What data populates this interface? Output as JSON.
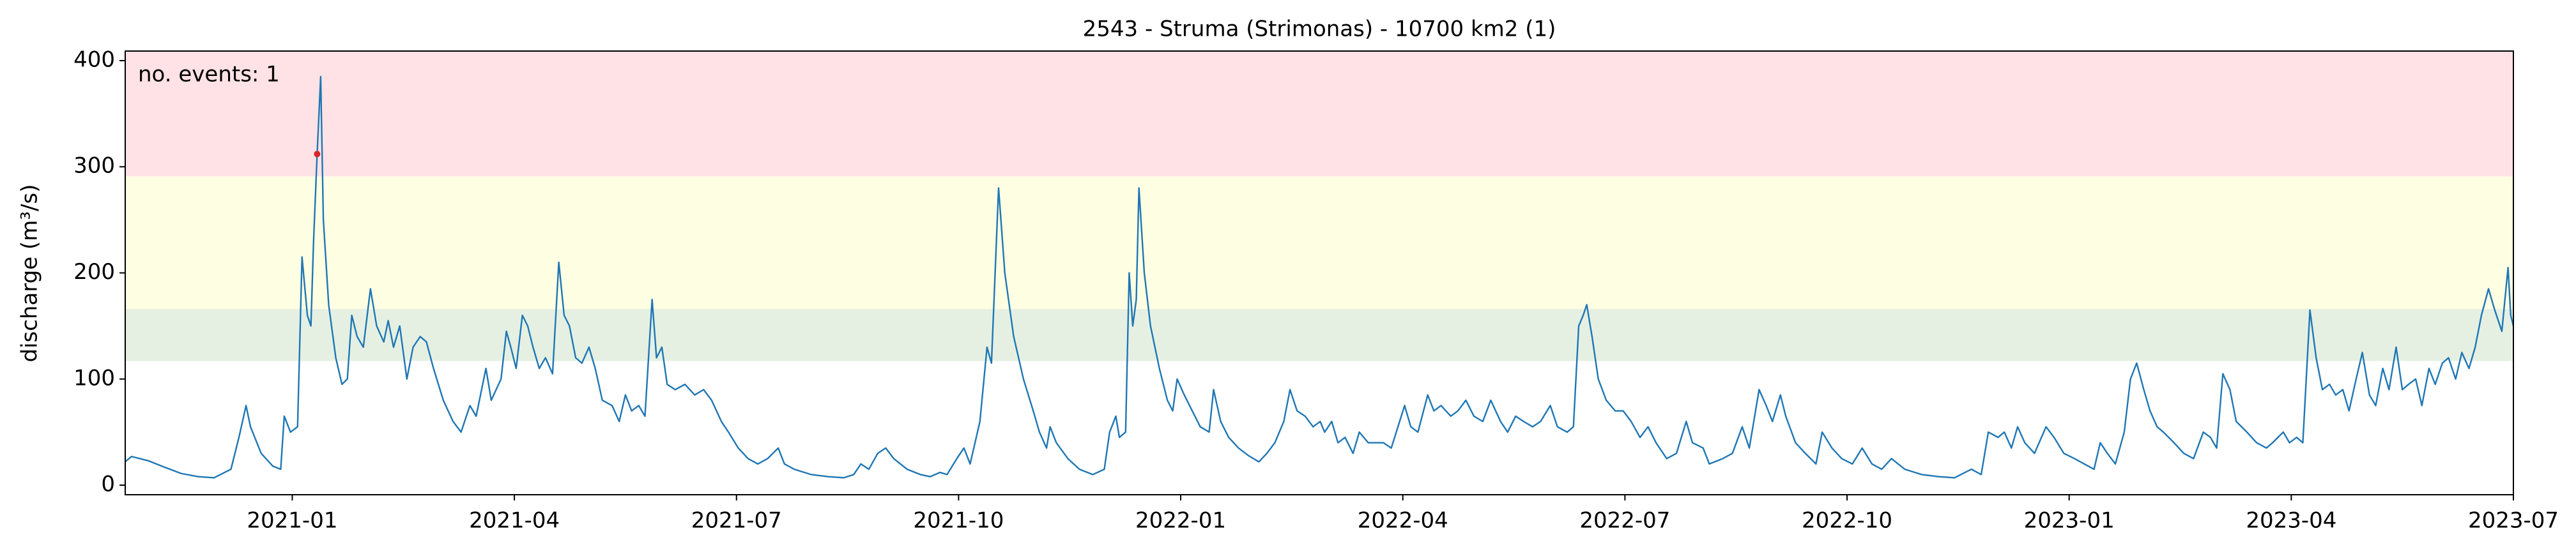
{
  "chart_data": {
    "type": "line",
    "title": "2543 - Struma (Strimonas) - 10700 km2 (1)",
    "y_label": "discharge (m³/s)",
    "annotation": "no. events: 1",
    "color": "#1f77b4",
    "x": [
      2020.812,
      2020.819,
      2020.838,
      2020.856,
      2020.875,
      2020.894,
      2020.912,
      2020.931,
      2020.94,
      2020.948,
      2020.953,
      2020.965,
      2020.978,
      2020.987,
      2020.991,
      2020.998,
      2021.006,
      2021.011,
      2021.017,
      2021.021,
      2021.024,
      2021.028,
      2021.032,
      2021.035,
      2021.041,
      2021.049,
      2021.056,
      2021.062,
      2021.067,
      2021.073,
      2021.08,
      2021.088,
      2021.095,
      2021.103,
      2021.108,
      2021.114,
      2021.121,
      2021.129,
      2021.136,
      2021.144,
      2021.151,
      2021.159,
      2021.17,
      2021.181,
      2021.19,
      2021.2,
      2021.207,
      2021.218,
      2021.224,
      2021.235,
      2021.241,
      2021.246,
      2021.252,
      2021.259,
      2021.265,
      2021.271,
      2021.278,
      2021.285,
      2021.293,
      2021.3,
      2021.306,
      2021.312,
      2021.319,
      2021.326,
      2021.334,
      2021.341,
      2021.349,
      2021.36,
      2021.368,
      2021.375,
      2021.382,
      2021.39,
      2021.397,
      2021.405,
      2021.41,
      2021.416,
      2021.422,
      2021.431,
      2021.442,
      2021.453,
      2021.463,
      2021.472,
      2021.483,
      2021.491,
      2021.502,
      2021.513,
      2021.524,
      2021.535,
      2021.547,
      2021.554,
      2021.565,
      2021.584,
      2021.603,
      2021.621,
      2021.632,
      2021.64,
      2021.649,
      2021.659,
      2021.668,
      2021.677,
      2021.692,
      2021.707,
      2021.718,
      2021.729,
      2021.737,
      2021.748,
      2021.756,
      2021.763,
      2021.774,
      2021.782,
      2021.787,
      2021.795,
      2021.802,
      2021.812,
      2021.823,
      2021.834,
      2021.841,
      2021.849,
      2021.853,
      2021.86,
      2021.873,
      2021.886,
      2021.901,
      2021.914,
      2021.92,
      2021.927,
      2021.931,
      2021.938,
      2021.942,
      2021.946,
      2021.95,
      2021.953,
      2021.959,
      2021.966,
      2021.976,
      2021.985,
      2021.991,
      2021.996,
      2022.004,
      2022.013,
      2022.022,
      2022.032,
      2022.037,
      2022.045,
      2022.054,
      2022.065,
      2022.076,
      2022.088,
      2022.097,
      2022.106,
      2022.116,
      2022.123,
      2022.131,
      2022.14,
      2022.149,
      2022.157,
      2022.162,
      2022.17,
      2022.177,
      2022.185,
      2022.194,
      2022.201,
      2022.211,
      2022.228,
      2022.237,
      2022.252,
      2022.259,
      2022.267,
      2022.278,
      2022.285,
      2022.293,
      2022.304,
      2022.312,
      2022.321,
      2022.33,
      2022.34,
      2022.349,
      2022.36,
      2022.368,
      2022.377,
      2022.386,
      2022.396,
      2022.405,
      2022.416,
      2022.424,
      2022.435,
      2022.442,
      2022.448,
      2022.453,
      2022.457,
      2022.463,
      2022.47,
      2022.479,
      2022.489,
      2022.498,
      2022.507,
      2022.517,
      2022.526,
      2022.535,
      2022.547,
      2022.558,
      2022.569,
      2022.576,
      2022.588,
      2022.595,
      2022.61,
      2022.621,
      2022.632,
      2022.64,
      2022.651,
      2022.659,
      2022.666,
      2022.675,
      2022.681,
      2022.692,
      2022.703,
      2022.715,
      2022.722,
      2022.733,
      2022.744,
      2022.756,
      2022.767,
      2022.778,
      2022.789,
      2022.8,
      2022.815,
      2022.834,
      2022.853,
      2022.871,
      2022.89,
      2022.901,
      2022.909,
      2022.92,
      2022.927,
      2022.935,
      2022.942,
      2022.95,
      2022.961,
      2022.974,
      2022.983,
      2022.994,
      2023.006,
      2023.017,
      2023.028,
      2023.035,
      2023.043,
      2023.052,
      2023.062,
      2023.069,
      2023.076,
      2023.084,
      2023.091,
      2023.099,
      2023.106,
      2023.118,
      2023.129,
      2023.14,
      2023.151,
      2023.159,
      2023.166,
      2023.173,
      2023.181,
      2023.188,
      2023.2,
      2023.211,
      2023.222,
      2023.229,
      2023.241,
      2023.248,
      2023.256,
      2023.263,
      2023.271,
      2023.278,
      2023.285,
      2023.293,
      2023.3,
      2023.308,
      2023.315,
      2023.323,
      2023.33,
      2023.338,
      2023.345,
      2023.353,
      2023.36,
      2023.368,
      2023.375,
      2023.382,
      2023.39,
      2023.397,
      2023.405,
      2023.412,
      2023.42,
      2023.427,
      2023.435,
      2023.442,
      2023.45,
      2023.457,
      2023.464,
      2023.472,
      2023.479,
      2023.487,
      2023.494,
      2023.497,
      2023.5
    ],
    "values": [
      22,
      27,
      23,
      17,
      11,
      8,
      7,
      15,
      45,
      75,
      55,
      30,
      18,
      15,
      65,
      50,
      55,
      215,
      160,
      150,
      230,
      312,
      385,
      250,
      170,
      120,
      95,
      100,
      160,
      140,
      130,
      185,
      150,
      135,
      155,
      130,
      150,
      100,
      130,
      140,
      135,
      110,
      80,
      60,
      50,
      75,
      65,
      110,
      80,
      100,
      145,
      130,
      110,
      160,
      150,
      130,
      110,
      120,
      105,
      210,
      160,
      150,
      120,
      115,
      130,
      110,
      80,
      75,
      60,
      85,
      70,
      75,
      65,
      175,
      120,
      130,
      95,
      90,
      95,
      85,
      90,
      80,
      60,
      50,
      35,
      25,
      20,
      25,
      35,
      20,
      15,
      10,
      8,
      7,
      10,
      20,
      15,
      30,
      35,
      25,
      15,
      10,
      8,
      12,
      10,
      25,
      35,
      20,
      60,
      130,
      115,
      280,
      200,
      140,
      100,
      70,
      50,
      35,
      55,
      40,
      25,
      15,
      10,
      15,
      50,
      65,
      45,
      50,
      200,
      150,
      175,
      280,
      200,
      150,
      110,
      80,
      70,
      100,
      85,
      70,
      55,
      50,
      90,
      60,
      45,
      35,
      28,
      22,
      30,
      40,
      60,
      90,
      70,
      65,
      55,
      60,
      50,
      60,
      40,
      45,
      30,
      50,
      40,
      40,
      35,
      75,
      55,
      50,
      85,
      70,
      75,
      65,
      70,
      80,
      65,
      60,
      80,
      60,
      50,
      65,
      60,
      55,
      60,
      75,
      55,
      50,
      55,
      150,
      160,
      170,
      140,
      100,
      80,
      70,
      70,
      60,
      45,
      55,
      40,
      25,
      30,
      60,
      40,
      35,
      20,
      25,
      30,
      55,
      35,
      90,
      75,
      60,
      85,
      65,
      40,
      30,
      20,
      50,
      35,
      25,
      20,
      35,
      20,
      15,
      25,
      15,
      10,
      8,
      7,
      15,
      10,
      50,
      45,
      50,
      35,
      55,
      40,
      30,
      55,
      45,
      30,
      25,
      20,
      15,
      40,
      30,
      20,
      50,
      100,
      115,
      90,
      70,
      55,
      50,
      40,
      30,
      25,
      50,
      45,
      35,
      105,
      90,
      60,
      50,
      40,
      35,
      40,
      50,
      40,
      45,
      40,
      165,
      120,
      90,
      95,
      85,
      90,
      70,
      100,
      125,
      85,
      75,
      110,
      90,
      130,
      90,
      95,
      100,
      75,
      110,
      95,
      115,
      120,
      100,
      125,
      110,
      130,
      160,
      185,
      165,
      145,
      205,
      160,
      150
    ],
    "events": {
      "x": [
        2021.028
      ],
      "values": [
        312
      ],
      "color": "#d62728"
    },
    "bands": [
      {
        "range": [
          117,
          166
        ],
        "color": "#e5f0e3"
      },
      {
        "range": [
          166,
          291
        ],
        "color": "#fefee3"
      },
      {
        "range": [
          291,
          409
        ],
        "color": "#fee2e5"
      }
    ],
    "xlim": [
      2020.812,
      2023.5
    ],
    "xticks": [
      {
        "value": 2021.0,
        "label": "2021-01"
      },
      {
        "value": 2021.25,
        "label": "2021-04"
      },
      {
        "value": 2021.5,
        "label": "2021-07"
      },
      {
        "value": 2021.75,
        "label": "2021-10"
      },
      {
        "value": 2022.0,
        "label": "2022-01"
      },
      {
        "value": 2022.25,
        "label": "2022-04"
      },
      {
        "value": 2022.5,
        "label": "2022-07"
      },
      {
        "value": 2022.75,
        "label": "2022-10"
      },
      {
        "value": 2023.0,
        "label": "2023-01"
      },
      {
        "value": 2023.25,
        "label": "2023-04"
      },
      {
        "value": 2023.5,
        "label": "2023-07"
      }
    ],
    "ylim": [
      -9,
      409
    ],
    "yticks": [
      0,
      100,
      200,
      300,
      400
    ],
    "grid": false
  }
}
